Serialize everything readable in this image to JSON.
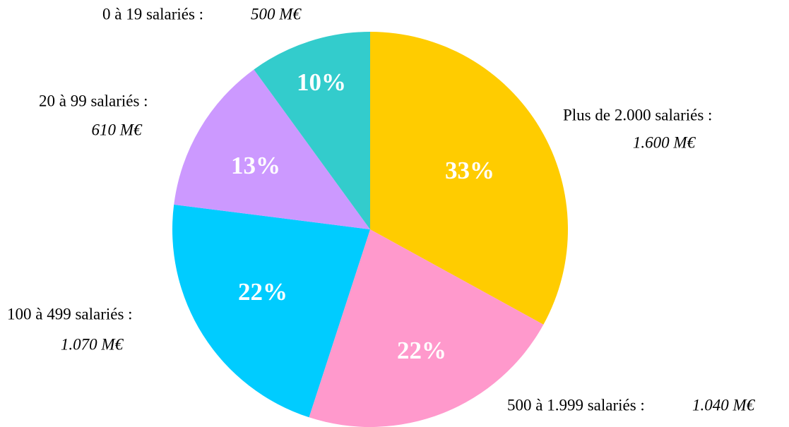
{
  "chart_data": {
    "type": "pie",
    "categories": [
      "Plus de 2.000 salariés :",
      "500 à 1.999 salariés :",
      "100 à 499 salariés :",
      "20 à 99 salariés :",
      "0 à 19 salariés :"
    ],
    "values": [
      33,
      22,
      22,
      13,
      10
    ],
    "value_labels": [
      "33%",
      "22%",
      "22%",
      "13%",
      "10%"
    ],
    "amounts": [
      1600,
      1040,
      1070,
      610,
      500
    ],
    "amount_labels": [
      "1.600 M€",
      "1.040 M€",
      "1.070 M€",
      "610 M€",
      "500 M€"
    ],
    "colors": [
      "#ffcc00",
      "#ff99cc",
      "#00ccff",
      "#cc99ff",
      "#33cccc"
    ]
  }
}
